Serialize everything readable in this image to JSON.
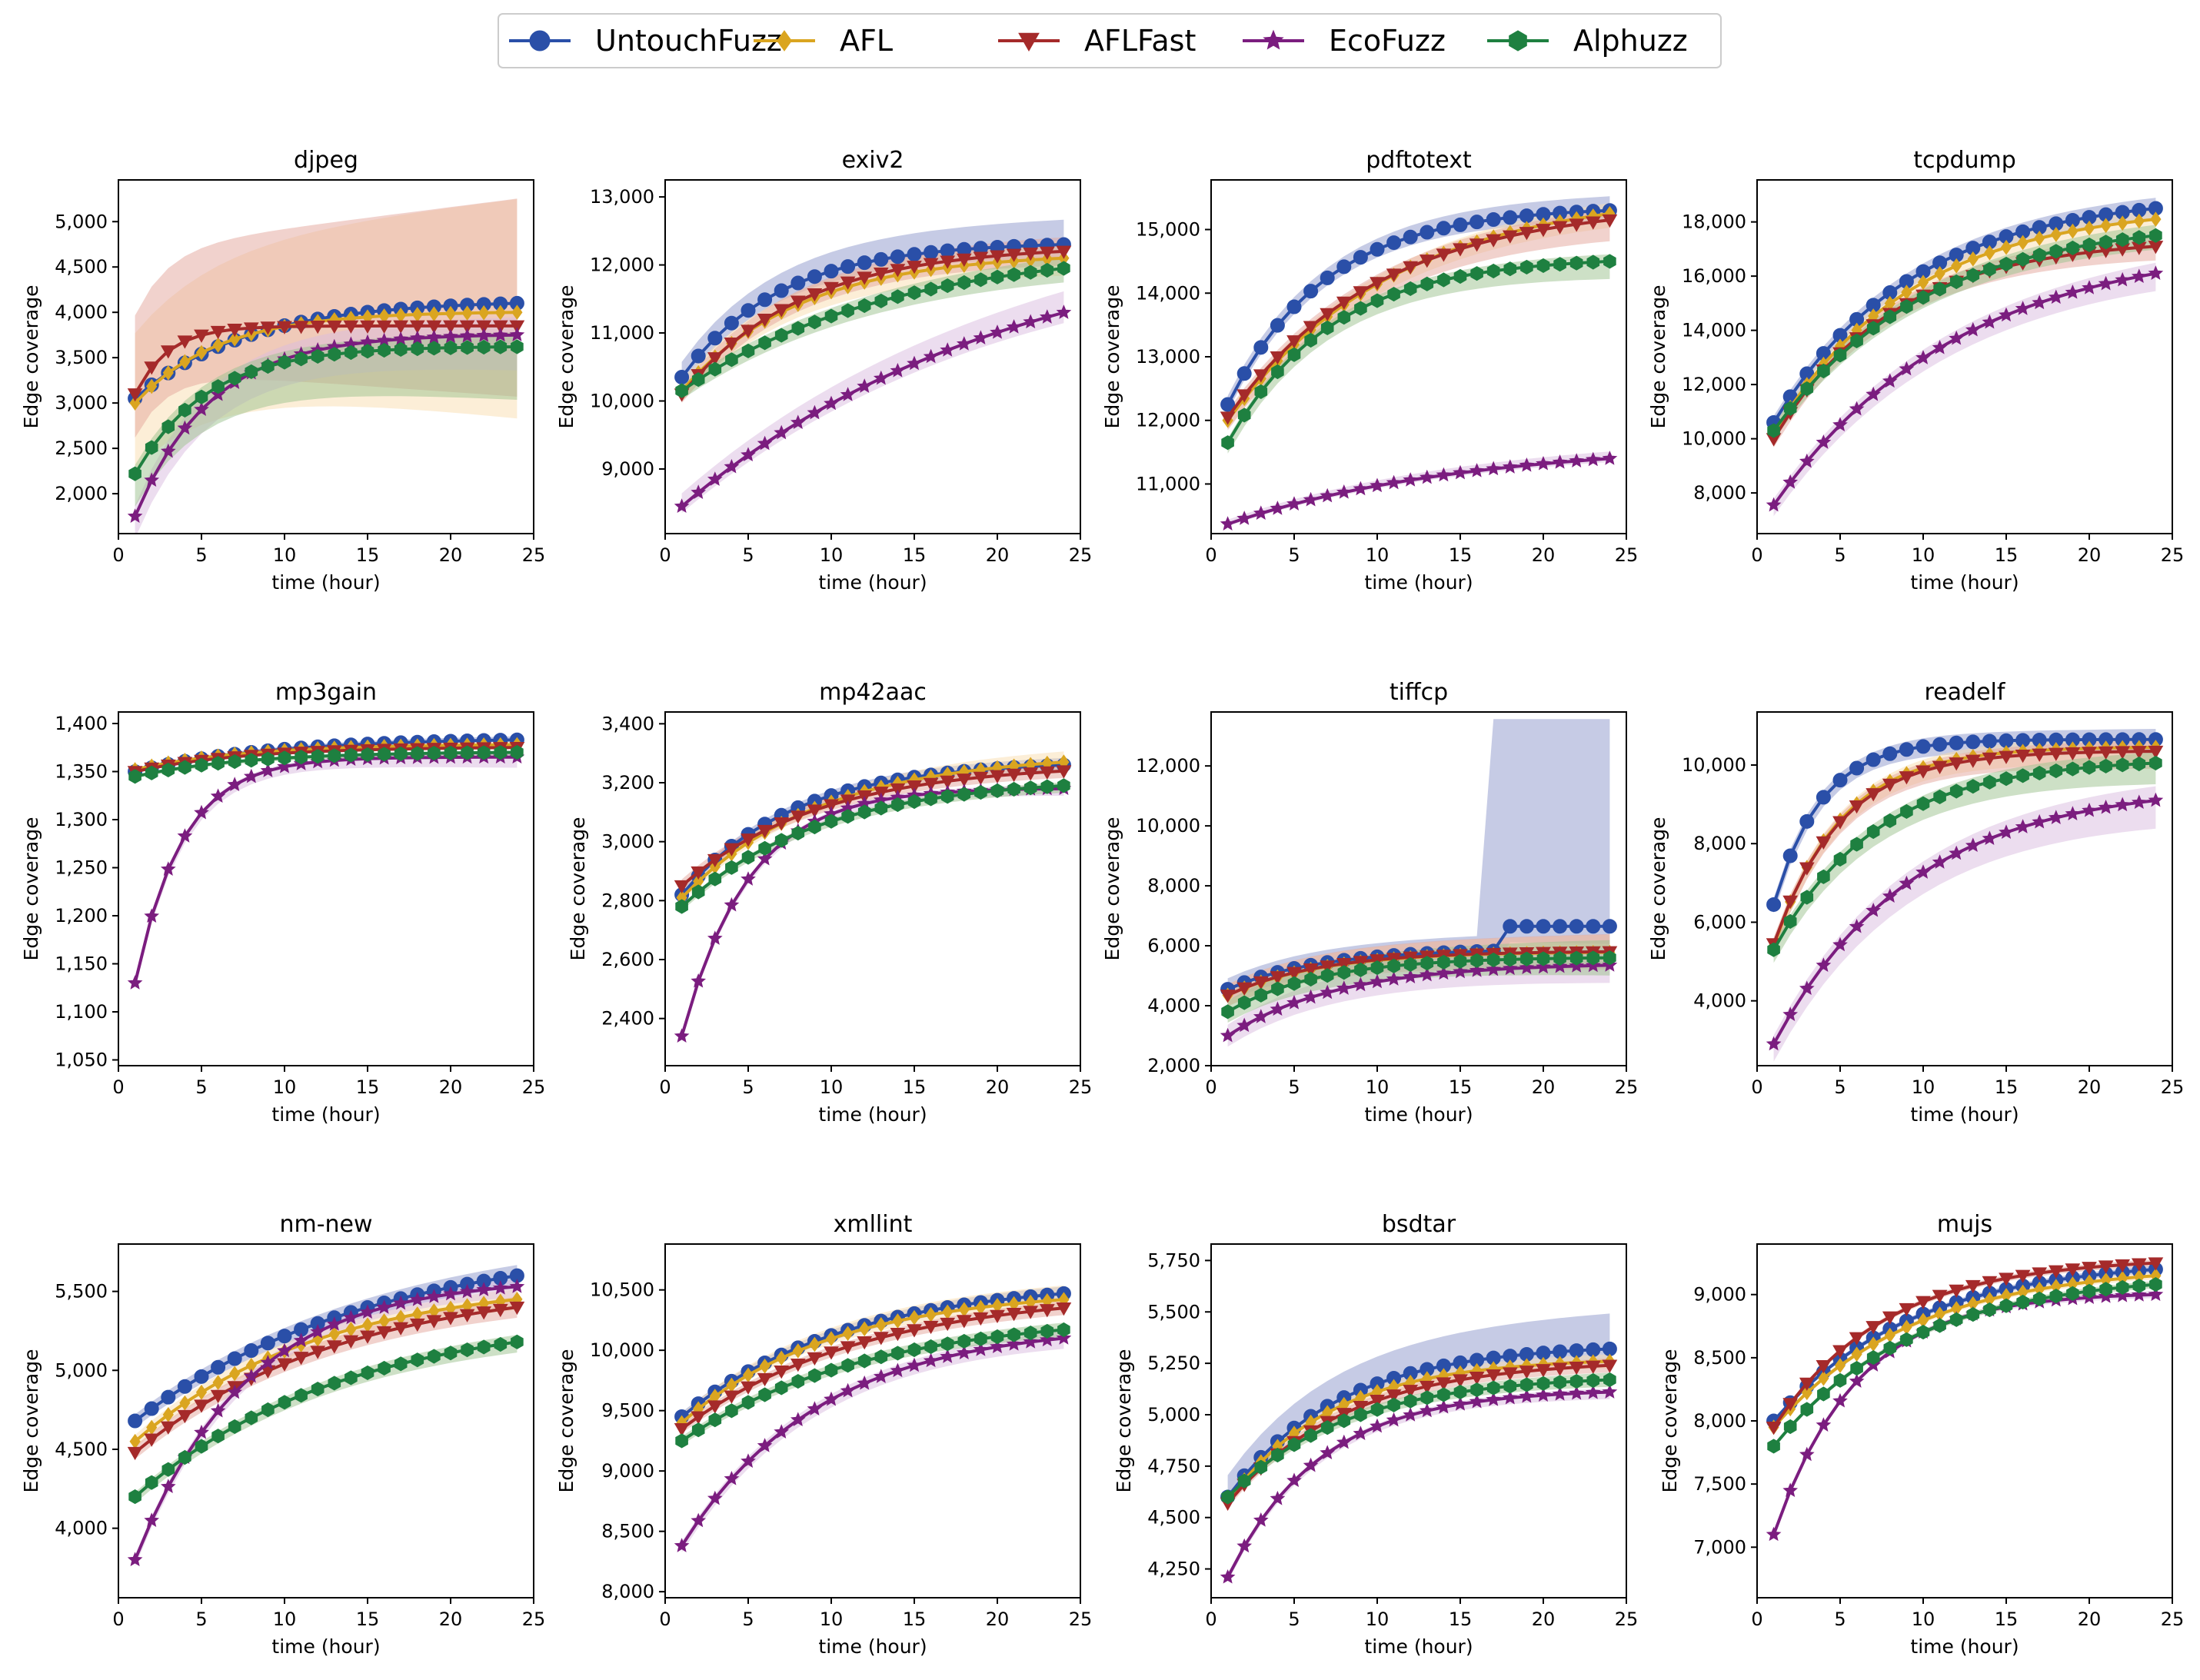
{
  "figure": {
    "legend": [
      "UntouchFuzz",
      "AFL",
      "AFLFast",
      "EcoFuzz",
      "Alphuzz"
    ],
    "xlabel": "time (hour)",
    "ylabel": "Edge coverage"
  },
  "colors": {
    "UntouchFuzz": "#2a4fa8",
    "AFL": "#daa520",
    "AFLFast": "#a52a2a",
    "EcoFuzz": "#7b1d7f",
    "Alphuzz": "#1e8040"
  },
  "bands": {
    "UntouchFuzz": "#8e97cc",
    "AFL": "#f9ddb0",
    "AFLFast": "#e3a59c",
    "EcoFuzz": "#d9bce0",
    "Alphuzz": "#9cc18e"
  },
  "markers": {
    "UntouchFuzz": "circle",
    "AFL": "diamond",
    "AFLFast": "triangle-down",
    "EcoFuzz": "star",
    "Alphuzz": "hexagon"
  },
  "chart_data": [
    {
      "type": "line",
      "title": "djpeg",
      "xlabel": "time (hour)",
      "ylabel": "Edge coverage",
      "xlim": [
        0,
        25
      ],
      "ylim": [
        1560,
        5460
      ],
      "xticks": [
        0,
        5,
        10,
        15,
        20,
        25
      ],
      "yticks": [
        2000,
        2500,
        3000,
        3500,
        4000,
        4500,
        5000
      ],
      "ytick_labels": [
        "2,000",
        "2,500",
        "3,000",
        "3,500",
        "4,000",
        "4,500",
        "5,000"
      ],
      "series": [
        {
          "name": "UntouchFuzz",
          "start": 3050,
          "end": 4100,
          "k": 0.15,
          "band_low": 0.25,
          "band_high": 0.05,
          "band_draw": false
        },
        {
          "name": "AFL",
          "start": 3000,
          "end": 4000,
          "k": 0.2,
          "band_low": 0.3,
          "band_high": 0.32,
          "band_draw": true
        },
        {
          "name": "AFLFast",
          "start": 3100,
          "end": 3850,
          "k": 0.5,
          "band_low": 0.2,
          "band_high": 0.36,
          "band_draw": true
        },
        {
          "name": "EcoFuzz",
          "start": 1750,
          "end": 3750,
          "k": 0.22,
          "band_low": 0.1,
          "band_high": 0.05,
          "band_draw": true
        },
        {
          "name": "Alphuzz",
          "start": 2220,
          "end": 3620,
          "k": 0.23,
          "band_low": 0.15,
          "band_high": 0.04,
          "band_draw": true
        }
      ]
    },
    {
      "type": "line",
      "title": "exiv2",
      "xlabel": "time (hour)",
      "ylabel": "Edge coverage",
      "xlim": [
        0,
        25
      ],
      "ylim": [
        8050,
        13250
      ],
      "xticks": [
        0,
        5,
        10,
        15,
        20,
        25
      ],
      "yticks": [
        9000,
        10000,
        11000,
        12000,
        13000
      ],
      "ytick_labels": [
        "9,000",
        "10,000",
        "11,000",
        "12,000",
        "13,000"
      ],
      "series": [
        {
          "name": "UntouchFuzz",
          "start": 10350,
          "end": 12300,
          "k": 0.17,
          "band_low": 0.04,
          "band_high": 0.07,
          "band_draw": true
        },
        {
          "name": "AFL",
          "start": 10150,
          "end": 12100,
          "k": 0.14,
          "band_low": 0.05,
          "band_high": 0.05,
          "band_draw": true
        },
        {
          "name": "AFLFast",
          "start": 10100,
          "end": 12200,
          "k": 0.14,
          "band_low": 0.04,
          "band_high": 0.04,
          "band_draw": true
        },
        {
          "name": "EcoFuzz",
          "start": 8450,
          "end": 11300,
          "k": 0.05,
          "band_low": 0.03,
          "band_high": 0.06,
          "band_draw": true
        },
        {
          "name": "Alphuzz",
          "start": 10150,
          "end": 11950,
          "k": 0.08,
          "band_low": 0.04,
          "band_high": 0.03,
          "band_draw": true
        }
      ]
    },
    {
      "type": "line",
      "title": "pdftotext",
      "xlabel": "time (hour)",
      "ylabel": "Edge coverage",
      "xlim": [
        0,
        25
      ],
      "ylim": [
        10220,
        15780
      ],
      "xticks": [
        0,
        5,
        10,
        15,
        20,
        25
      ],
      "yticks": [
        11000,
        12000,
        13000,
        14000,
        15000
      ],
      "ytick_labels": [
        "11,000",
        "12,000",
        "13,000",
        "14,000",
        "15,000"
      ],
      "series": [
        {
          "name": "UntouchFuzz",
          "start": 12250,
          "end": 15300,
          "k": 0.17,
          "band_low": 0.03,
          "band_high": 0.04,
          "band_draw": true
        },
        {
          "name": "AFL",
          "start": 12000,
          "end": 15250,
          "k": 0.1,
          "band_low": 0.04,
          "band_high": 0.03,
          "band_draw": true
        },
        {
          "name": "AFLFast",
          "start": 12050,
          "end": 15150,
          "k": 0.11,
          "band_low": 0.06,
          "band_high": 0.03,
          "band_draw": true
        },
        {
          "name": "EcoFuzz",
          "start": 10370,
          "end": 11400,
          "k": 0.07,
          "band_low": 0.01,
          "band_high": 0.02,
          "band_draw": true
        },
        {
          "name": "Alphuzz",
          "start": 11650,
          "end": 14500,
          "k": 0.16,
          "band_low": 0.05,
          "band_high": 0.02,
          "band_draw": true
        }
      ]
    },
    {
      "type": "line",
      "title": "tcpdump",
      "xlabel": "time (hour)",
      "ylabel": "Edge coverage",
      "xlim": [
        0,
        25
      ],
      "ylim": [
        6500,
        19550
      ],
      "xticks": [
        0,
        5,
        10,
        15,
        20,
        25
      ],
      "yticks": [
        8000,
        10000,
        12000,
        14000,
        16000,
        18000
      ],
      "ytick_labels": [
        "8,000",
        "10,000",
        "12,000",
        "14,000",
        "16,000",
        "18,000"
      ],
      "series": [
        {
          "name": "UntouchFuzz",
          "start": 10600,
          "end": 18500,
          "k": 0.12,
          "band_low": 0.03,
          "band_high": 0.03,
          "band_draw": true
        },
        {
          "name": "AFL",
          "start": 10200,
          "end": 18100,
          "k": 0.12,
          "band_low": 0.04,
          "band_high": 0.03,
          "band_draw": true
        },
        {
          "name": "AFLFast",
          "start": 10000,
          "end": 17100,
          "k": 0.14,
          "band_low": 0.04,
          "band_high": 0.03,
          "band_draw": true
        },
        {
          "name": "EcoFuzz",
          "start": 7550,
          "end": 16100,
          "k": 0.09,
          "band_low": 0.05,
          "band_high": 0.03,
          "band_draw": true
        },
        {
          "name": "Alphuzz",
          "start": 10300,
          "end": 17500,
          "k": 0.11,
          "band_low": 0.04,
          "band_high": 0.03,
          "band_draw": true
        }
      ]
    },
    {
      "type": "line",
      "title": "mp3gain",
      "xlabel": "time (hour)",
      "ylabel": "Edge coverage",
      "xlim": [
        0,
        25
      ],
      "ylim": [
        1044,
        1412
      ],
      "xticks": [
        0,
        5,
        10,
        15,
        20,
        25
      ],
      "yticks": [
        1050,
        1100,
        1150,
        1200,
        1250,
        1300,
        1350,
        1400
      ],
      "ytick_labels": [
        "1,050",
        "1,100",
        "1,150",
        "1,200",
        "1,250",
        "1,300",
        "1,350",
        "1,400"
      ],
      "series": [
        {
          "name": "UntouchFuzz",
          "start": 1350,
          "end": 1383,
          "k": 0.12,
          "band_low": 0.005,
          "band_high": 0.01,
          "band_draw": true
        },
        {
          "name": "AFL",
          "start": 1352,
          "end": 1378,
          "k": 0.15,
          "band_low": 0.005,
          "band_high": 0.01,
          "band_draw": true
        },
        {
          "name": "AFLFast",
          "start": 1350,
          "end": 1375,
          "k": 0.15,
          "band_low": 0.005,
          "band_high": 0.01,
          "band_draw": true
        },
        {
          "name": "EcoFuzz",
          "start": 1130,
          "end": 1365,
          "k": 0.35,
          "band_low": 0.03,
          "band_high": 0.01,
          "band_draw": true
        },
        {
          "name": "Alphuzz",
          "start": 1345,
          "end": 1370,
          "k": 0.15,
          "band_low": 0.01,
          "band_high": 0.005,
          "band_draw": true
        }
      ]
    },
    {
      "type": "line",
      "title": "mp42aac",
      "xlabel": "time (hour)",
      "ylabel": "Edge coverage",
      "xlim": [
        0,
        25
      ],
      "ylim": [
        2240,
        3440
      ],
      "xticks": [
        0,
        5,
        10,
        15,
        20,
        25
      ],
      "yticks": [
        2400,
        2600,
        2800,
        3000,
        3200,
        3400
      ],
      "ytick_labels": [
        "2,400",
        "2,600",
        "2,800",
        "3,000",
        "3,200",
        "3,400"
      ],
      "series": [
        {
          "name": "UntouchFuzz",
          "start": 2820,
          "end": 3260,
          "k": 0.15,
          "band_low": 0.02,
          "band_high": 0.02,
          "band_draw": true
        },
        {
          "name": "AFL",
          "start": 2810,
          "end": 3270,
          "k": 0.12,
          "band_low": 0.02,
          "band_high": 0.03,
          "band_draw": true
        },
        {
          "name": "AFLFast",
          "start": 2850,
          "end": 3240,
          "k": 0.12,
          "band_low": 0.02,
          "band_high": 0.03,
          "band_draw": true
        },
        {
          "name": "EcoFuzz",
          "start": 2340,
          "end": 3180,
          "k": 0.25,
          "band_low": 0.02,
          "band_high": 0.01,
          "band_draw": true
        },
        {
          "name": "Alphuzz",
          "start": 2780,
          "end": 3190,
          "k": 0.12,
          "band_low": 0.02,
          "band_high": 0.01,
          "band_draw": true
        }
      ]
    },
    {
      "type": "line",
      "title": "tiffcp",
      "xlabel": "time (hour)",
      "ylabel": "Edge coverage",
      "xlim": [
        0,
        25
      ],
      "ylim": [
        2000,
        13800
      ],
      "xticks": [
        0,
        5,
        10,
        15,
        20,
        25
      ],
      "yticks": [
        2000,
        4000,
        6000,
        8000,
        10000,
        12000
      ],
      "ytick_labels": [
        "2,000",
        "4,000",
        "6,000",
        "8,000",
        "10,000",
        "12,000"
      ],
      "series": [
        {
          "name": "UntouchFuzz",
          "start": 4550,
          "end": 5880,
          "k": 0.18,
          "band_low": 0.05,
          "band_high": 0.05,
          "band_draw": true,
          "jump_at": 18,
          "jump_value": 6650
        },
        {
          "name": "AFL",
          "start": 4350,
          "end": 5780,
          "k": 0.18,
          "band_low": 0.05,
          "band_high": 0.05,
          "band_draw": true
        },
        {
          "name": "AFLFast",
          "start": 4350,
          "end": 5800,
          "k": 0.18,
          "band_low": 0.05,
          "band_high": 0.05,
          "band_draw": true
        },
        {
          "name": "EcoFuzz",
          "start": 3000,
          "end": 5350,
          "k": 0.15,
          "band_low": 0.05,
          "band_high": 0.05,
          "band_draw": true
        },
        {
          "name": "Alphuzz",
          "start": 3800,
          "end": 5600,
          "k": 0.18,
          "band_low": 0.05,
          "band_high": 0.05,
          "band_draw": true
        }
      ]
    },
    {
      "type": "line",
      "title": "readelf",
      "xlabel": "time (hour)",
      "ylabel": "Edge coverage",
      "xlim": [
        0,
        25
      ],
      "ylim": [
        2350,
        11350
      ],
      "xticks": [
        0,
        5,
        10,
        15,
        20,
        25
      ],
      "yticks": [
        4000,
        6000,
        8000,
        10000
      ],
      "ytick_labels": [
        "4,000",
        "6,000",
        "8,000",
        "10,000"
      ],
      "series": [
        {
          "name": "UntouchFuzz",
          "start": 6450,
          "end": 10650,
          "k": 0.35,
          "band_low": 0.04,
          "band_high": 0.03,
          "band_draw": true
        },
        {
          "name": "AFL",
          "start": 5400,
          "end": 10450,
          "k": 0.25,
          "band_low": 0.05,
          "band_high": 0.03,
          "band_draw": true
        },
        {
          "name": "AFLFast",
          "start": 5450,
          "end": 10350,
          "k": 0.25,
          "band_low": 0.05,
          "band_high": 0.03,
          "band_draw": true
        },
        {
          "name": "EcoFuzz",
          "start": 2900,
          "end": 9100,
          "k": 0.12,
          "band_low": 0.08,
          "band_high": 0.04,
          "band_draw": true
        },
        {
          "name": "Alphuzz",
          "start": 5300,
          "end": 10050,
          "k": 0.16,
          "band_low": 0.06,
          "band_high": 0.03,
          "band_draw": true
        }
      ]
    },
    {
      "type": "line",
      "title": "nm-new",
      "xlabel": "time (hour)",
      "ylabel": "Edge coverage",
      "xlim": [
        0,
        25
      ],
      "ylim": [
        3560,
        5800
      ],
      "xticks": [
        0,
        5,
        10,
        15,
        20,
        25
      ],
      "yticks": [
        4000,
        4500,
        5000,
        5500
      ],
      "ytick_labels": [
        "4,000",
        "4,500",
        "5,000",
        "5,500"
      ],
      "series": [
        {
          "name": "UntouchFuzz",
          "start": 4680,
          "end": 5600,
          "k": 0.07,
          "band_low": 0.03,
          "band_high": 0.03,
          "band_draw": true
        },
        {
          "name": "AFL",
          "start": 4550,
          "end": 5450,
          "k": 0.09,
          "band_low": 0.03,
          "band_high": 0.03,
          "band_draw": true
        },
        {
          "name": "AFLFast",
          "start": 4480,
          "end": 5400,
          "k": 0.08,
          "band_low": 0.03,
          "band_high": 0.03,
          "band_draw": true
        },
        {
          "name": "EcoFuzz",
          "start": 3800,
          "end": 5530,
          "k": 0.15,
          "band_low": 0.03,
          "band_high": 0.02,
          "band_draw": true
        },
        {
          "name": "Alphuzz",
          "start": 4200,
          "end": 5180,
          "k": 0.08,
          "band_low": 0.03,
          "band_high": 0.02,
          "band_draw": true
        }
      ]
    },
    {
      "type": "line",
      "title": "xmllint",
      "xlabel": "time (hour)",
      "ylabel": "Edge coverage",
      "xlim": [
        0,
        25
      ],
      "ylim": [
        7950,
        10880
      ],
      "xticks": [
        0,
        5,
        10,
        15,
        20,
        25
      ],
      "yticks": [
        8000,
        8500,
        9000,
        9500,
        10000,
        10500
      ],
      "ytick_labels": [
        "8,000",
        "8,500",
        "9,000",
        "9,500",
        "10,000",
        "10,500"
      ],
      "series": [
        {
          "name": "UntouchFuzz",
          "start": 9450,
          "end": 10470,
          "k": 0.1,
          "band_low": 0.02,
          "band_high": 0.02,
          "band_draw": true
        },
        {
          "name": "AFL",
          "start": 9400,
          "end": 10420,
          "k": 0.11,
          "band_low": 0.02,
          "band_high": 0.04,
          "band_draw": true
        },
        {
          "name": "AFLFast",
          "start": 9350,
          "end": 10350,
          "k": 0.09,
          "band_low": 0.02,
          "band_high": 0.02,
          "band_draw": true
        },
        {
          "name": "EcoFuzz",
          "start": 8380,
          "end": 10100,
          "k": 0.12,
          "band_low": 0.03,
          "band_high": 0.02,
          "band_draw": true
        },
        {
          "name": "Alphuzz",
          "start": 9250,
          "end": 10170,
          "k": 0.09,
          "band_low": 0.02,
          "band_high": 0.02,
          "band_draw": true
        }
      ]
    },
    {
      "type": "line",
      "title": "bsdtar",
      "xlabel": "time (hour)",
      "ylabel": "Edge coverage",
      "xlim": [
        0,
        25
      ],
      "ylim": [
        4110,
        5830
      ],
      "xticks": [
        0,
        5,
        10,
        15,
        20,
        25
      ],
      "yticks": [
        4250,
        4500,
        4750,
        5000,
        5250,
        5500,
        5750
      ],
      "ytick_labels": [
        "4,250",
        "4,500",
        "4,750",
        "5,000",
        "5,250",
        "5,500",
        "5,750"
      ],
      "series": [
        {
          "name": "UntouchFuzz",
          "start": 4600,
          "end": 5320,
          "k": 0.15,
          "band_low": 0.03,
          "band_high": 0.1,
          "band_draw": true
        },
        {
          "name": "AFL",
          "start": 4580,
          "end": 5260,
          "k": 0.16,
          "band_low": 0.02,
          "band_high": 0.02,
          "band_draw": true
        },
        {
          "name": "AFLFast",
          "start": 4570,
          "end": 5240,
          "k": 0.14,
          "band_low": 0.02,
          "band_high": 0.02,
          "band_draw": true
        },
        {
          "name": "EcoFuzz",
          "start": 4210,
          "end": 5110,
          "k": 0.18,
          "band_low": 0.02,
          "band_high": 0.01,
          "band_draw": true
        },
        {
          "name": "Alphuzz",
          "start": 4600,
          "end": 5170,
          "k": 0.14,
          "band_low": 0.02,
          "band_high": 0.02,
          "band_draw": true
        }
      ]
    },
    {
      "type": "line",
      "title": "mujs",
      "xlabel": "time (hour)",
      "ylabel": "Edge coverage",
      "xlim": [
        0,
        25
      ],
      "ylim": [
        6600,
        9400
      ],
      "xticks": [
        0,
        5,
        10,
        15,
        20,
        25
      ],
      "yticks": [
        7000,
        7500,
        8000,
        8500,
        9000
      ],
      "ytick_labels": [
        "7,000",
        "7,500",
        "8,000",
        "8,500",
        "9,000"
      ],
      "series": [
        {
          "name": "UntouchFuzz",
          "start": 8000,
          "end": 9200,
          "k": 0.12,
          "band_low": 0.01,
          "band_high": 0.01,
          "band_draw": true
        },
        {
          "name": "AFL",
          "start": 7950,
          "end": 9150,
          "k": 0.12,
          "band_low": 0.01,
          "band_high": 0.01,
          "band_draw": true
        },
        {
          "name": "AFLFast",
          "start": 7950,
          "end": 9250,
          "k": 0.15,
          "band_low": 0.01,
          "band_high": 0.01,
          "band_draw": true
        },
        {
          "name": "EcoFuzz",
          "start": 7100,
          "end": 9000,
          "k": 0.2,
          "band_low": 0.01,
          "band_high": 0.01,
          "band_draw": true
        },
        {
          "name": "Alphuzz",
          "start": 7800,
          "end": 9080,
          "k": 0.12,
          "band_low": 0.01,
          "band_high": 0.01,
          "band_draw": true
        }
      ]
    }
  ]
}
